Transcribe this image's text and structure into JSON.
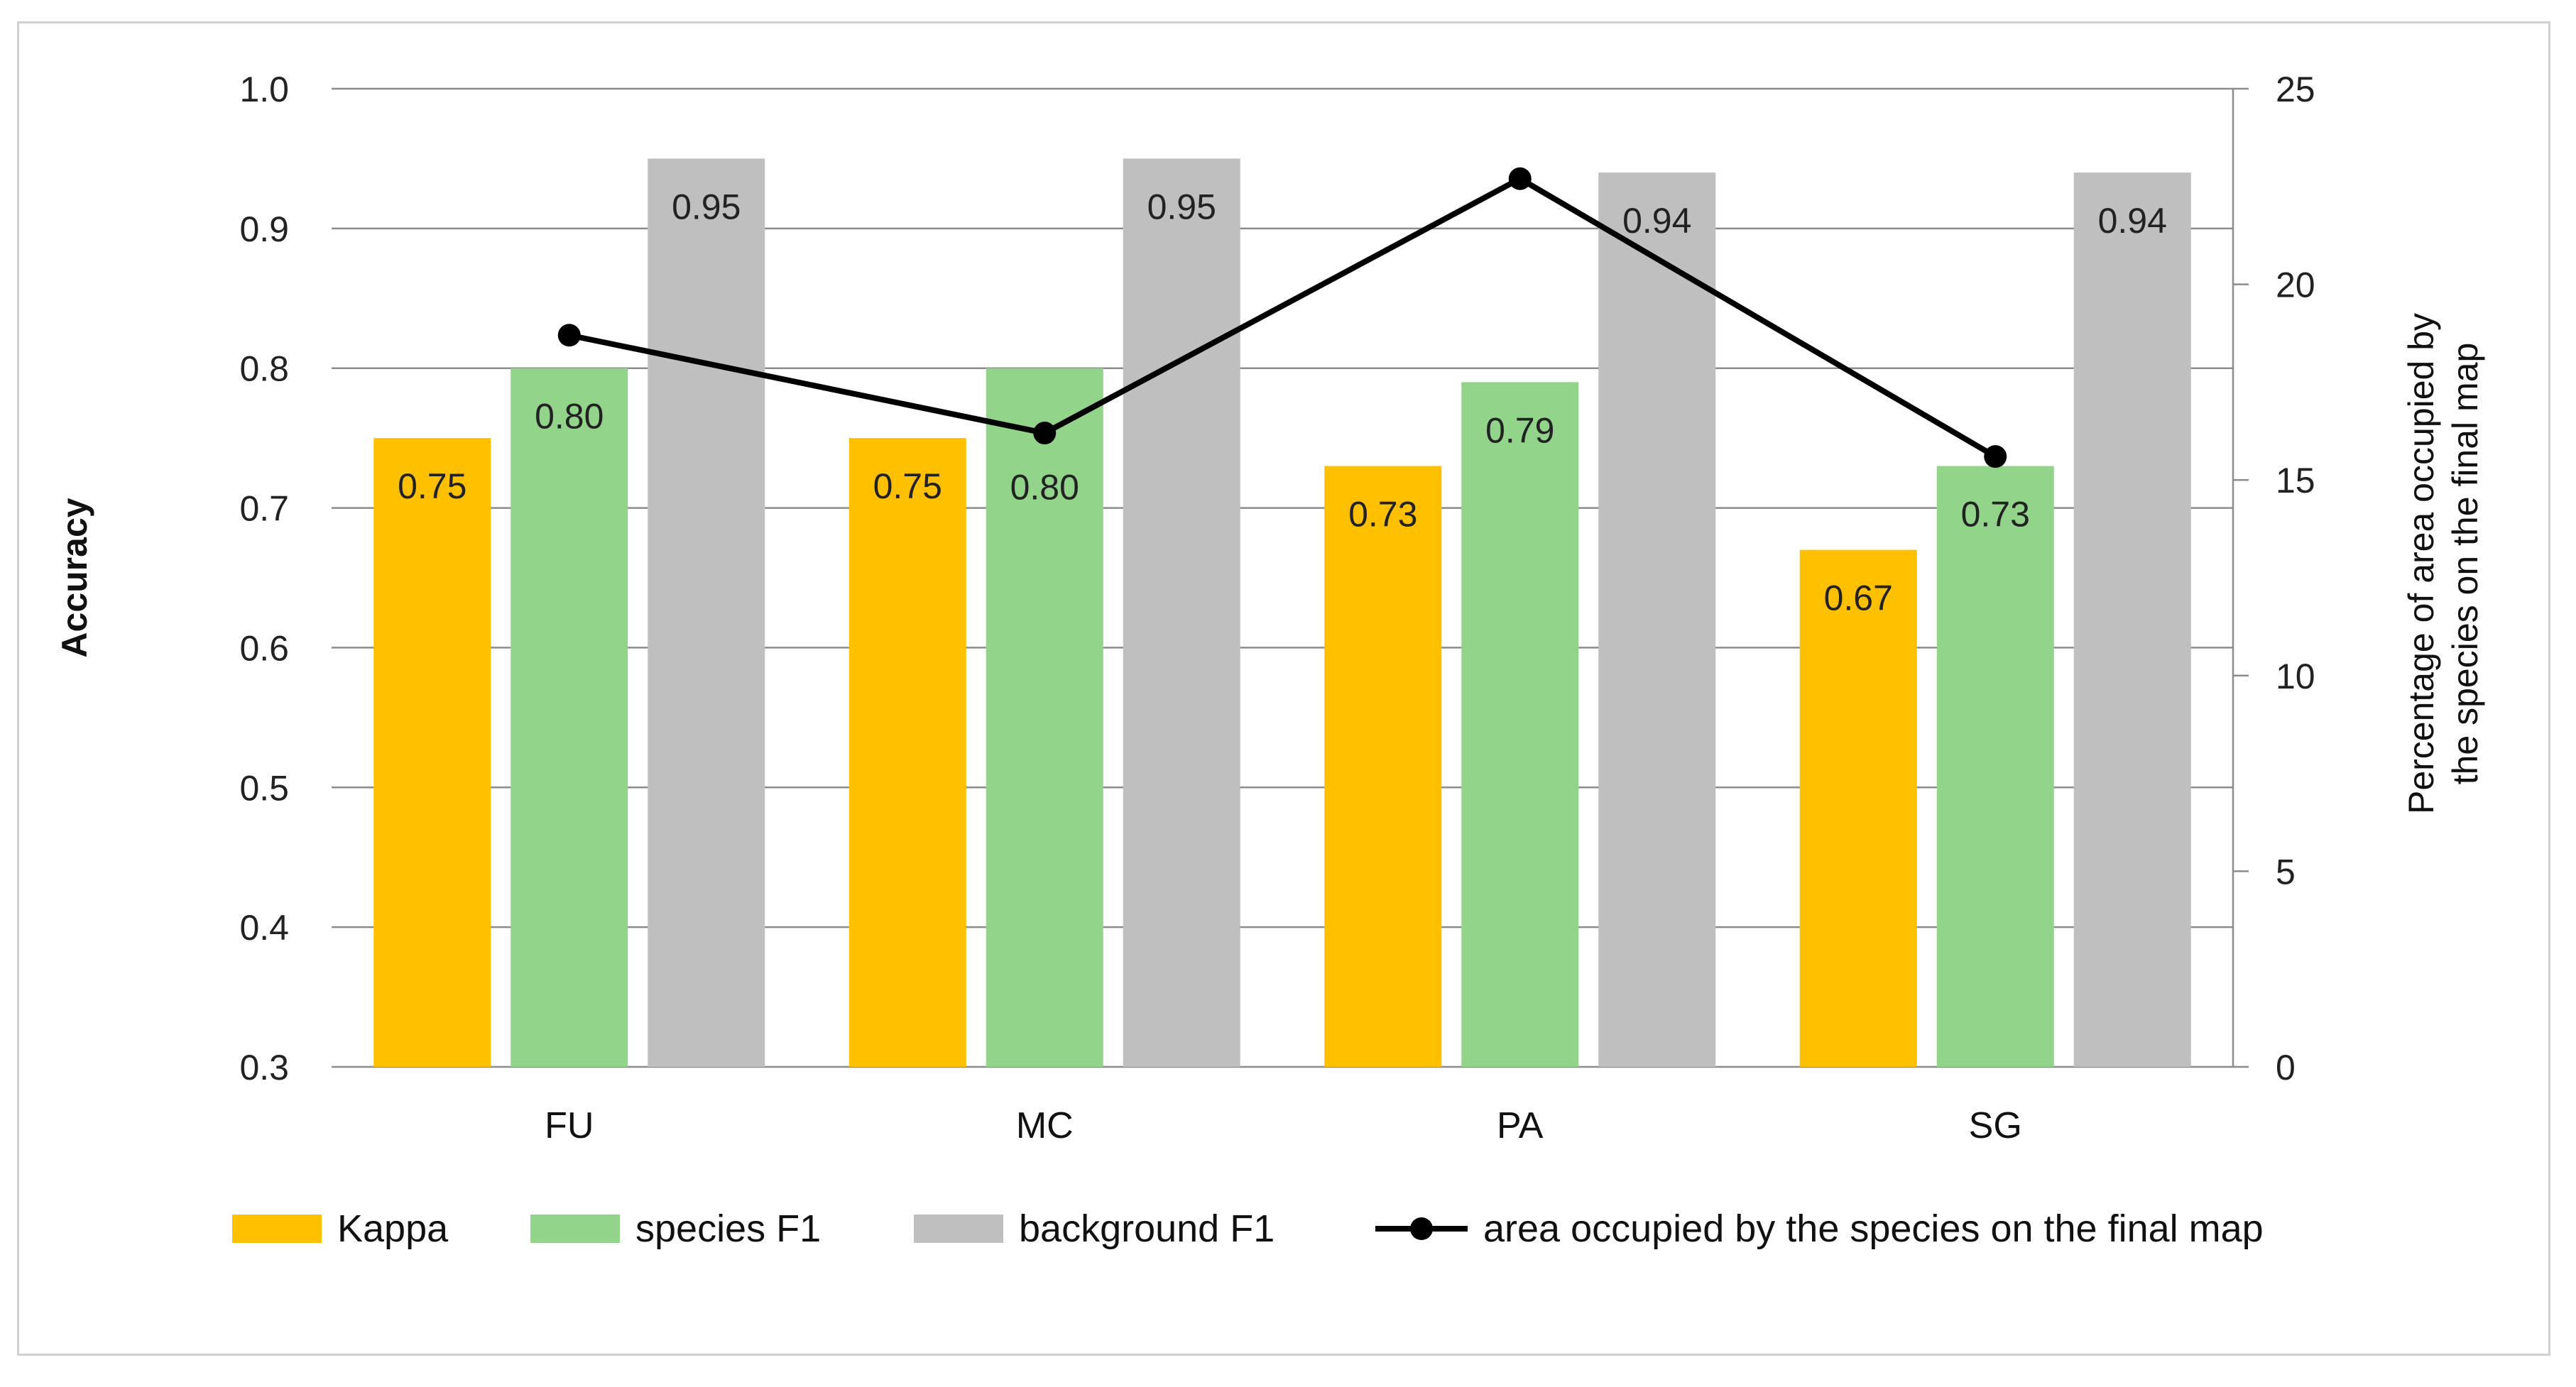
{
  "chart_data": {
    "type": "bar",
    "categories": [
      "FU",
      "MC",
      "PA",
      "SG"
    ],
    "series": [
      {
        "name": "Kappa",
        "values": [
          0.75,
          0.75,
          0.73,
          0.67
        ],
        "labels": [
          "0.75",
          "0.75",
          "0.73",
          "0.67"
        ],
        "color": "#FFC000",
        "axis": "left"
      },
      {
        "name": "species F1",
        "values": [
          0.8,
          0.8,
          0.79,
          0.73
        ],
        "labels": [
          "0.80",
          "0.80",
          "0.79",
          "0.73"
        ],
        "color": "#92D48A",
        "axis": "left"
      },
      {
        "name": "background F1",
        "values": [
          0.95,
          0.95,
          0.94,
          0.94
        ],
        "labels": [
          "0.95",
          "0.95",
          "0.94",
          "0.94"
        ],
        "color": "#BFBFBF",
        "axis": "left"
      }
    ],
    "line_series": {
      "name": "area occupied by the species on the final map",
      "values": [
        18.7,
        16.2,
        22.7,
        15.6
      ],
      "color": "#000000",
      "axis": "right"
    },
    "ylabel": "Accuracy",
    "ylim": [
      0.3,
      1.0
    ],
    "yticks": [
      "0.3",
      "0.4",
      "0.5",
      "0.6",
      "0.7",
      "0.8",
      "0.9",
      "1.0"
    ],
    "y2label_line1": "Percentage of area occupied by",
    "y2label_line2": "the species on the final map",
    "y2lim": [
      0,
      25
    ],
    "y2ticks": [
      "0",
      "5",
      "10",
      "15",
      "20",
      "25"
    ],
    "grid": true,
    "legend_position": "bottom"
  }
}
